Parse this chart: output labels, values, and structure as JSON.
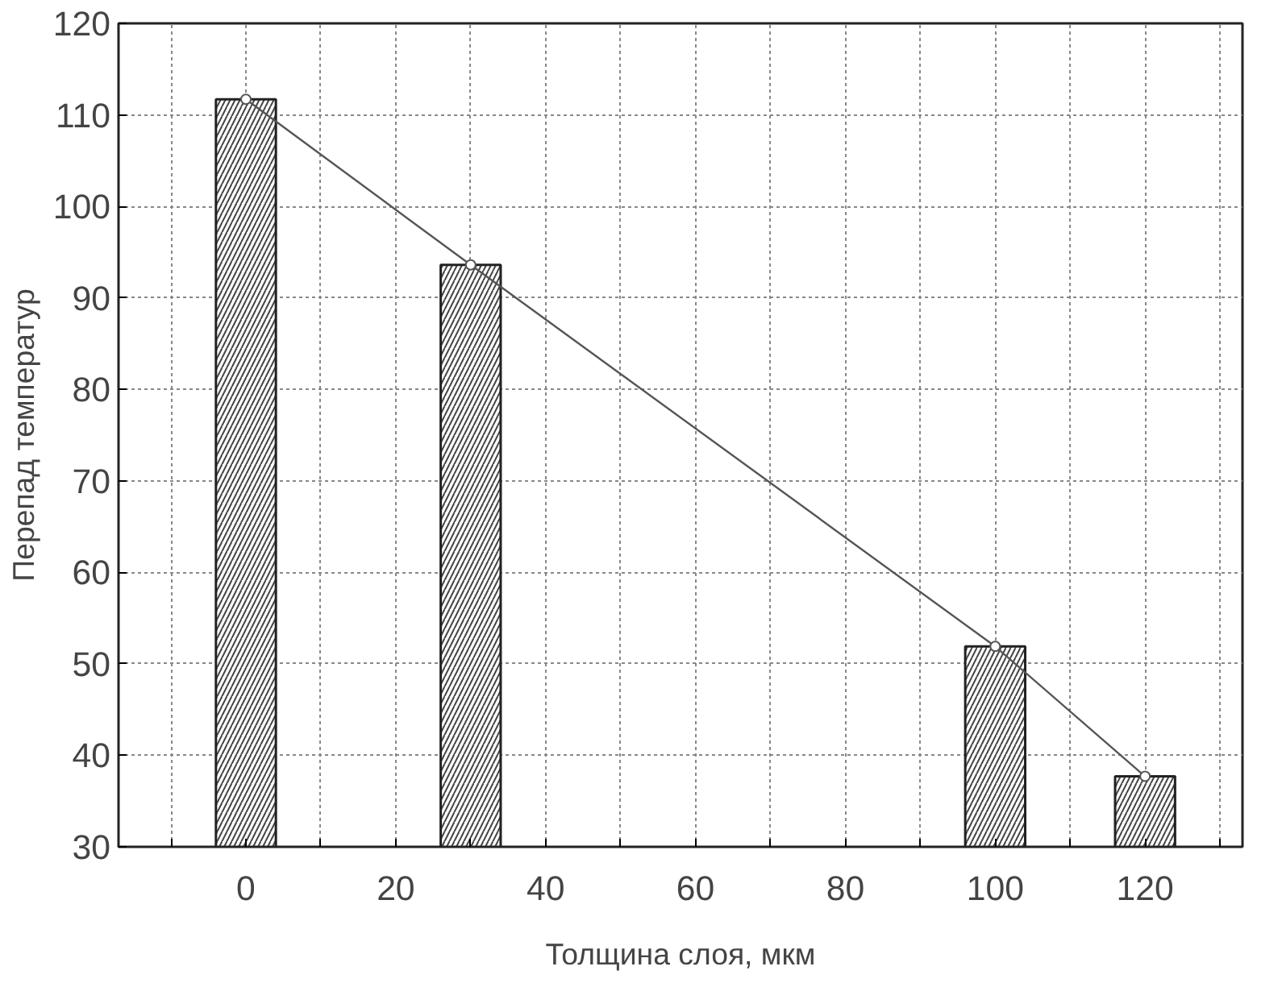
{
  "chart_data": {
    "type": "bar",
    "xlabel": "Толщина слоя, мкм",
    "ylabel": "Перепад температур",
    "x": [
      0,
      30,
      100,
      120
    ],
    "series": [
      {
        "color": "#ffffff",
        "values": [
          111.7,
          93.6,
          51.9,
          37.7
        ]
      },
      {
        "type": "line",
        "color": "#555555",
        "values": [
          111.7,
          93.6,
          51.9,
          37.7
        ]
      }
    ],
    "xlim": [
      -17,
      133
    ],
    "ylim": [
      30,
      120
    ],
    "xticks": [
      {
        "value": -10,
        "label": null
      },
      0,
      {
        "value": 10,
        "label": null
      },
      20,
      {
        "value": 30,
        "label": null
      },
      40,
      {
        "value": 50,
        "label": null
      },
      60,
      {
        "value": 70,
        "label": null
      },
      80,
      {
        "value": 90,
        "label": null
      },
      100,
      {
        "value": 110,
        "label": null
      },
      120,
      {
        "value": 130,
        "label": null
      }
    ],
    "yticks": [
      30,
      40,
      50,
      60,
      70,
      80,
      90,
      100,
      110,
      120
    ],
    "grid": true,
    "marker": "circle",
    "line_style": "solid"
  }
}
